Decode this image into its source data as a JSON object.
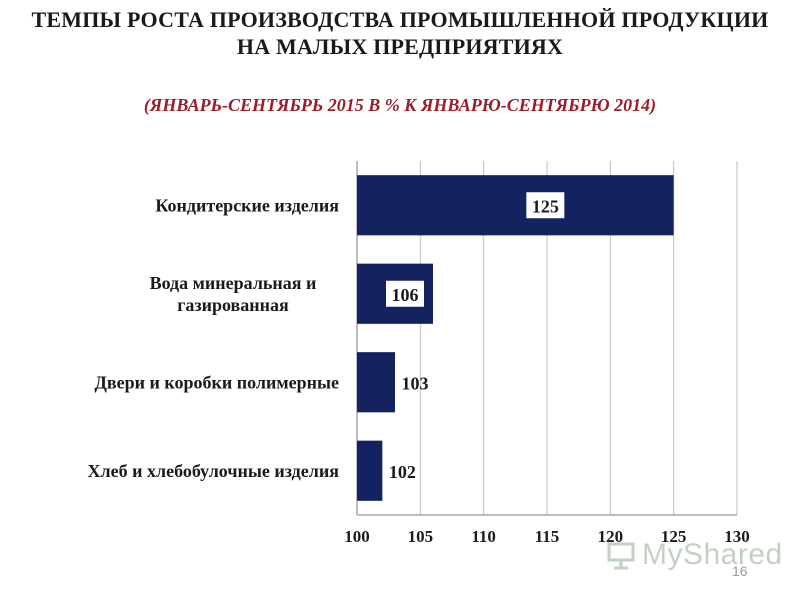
{
  "slide": {
    "title": "ТЕМПЫ РОСТА ПРОИЗВОДСТВА ПРОМЫШЛЕННОЙ ПРОДУКЦИИ НА МАЛЫХ ПРЕДПРИЯТИЯХ",
    "subtitle": "(ЯНВАРЬ-СЕНТЯБРЬ 2015 В % К ЯНВАРЮ-СЕНТЯБРЮ 2014)",
    "page_number": "16",
    "watermark_text": "MyShared",
    "watermark_icon": "presentation-board-icon"
  },
  "colors": {
    "bar": "#14235f",
    "subtitle": "#9b1c2c",
    "grid": "#bfbfbf",
    "axis": "#7f7f7f"
  },
  "chart_data": {
    "type": "bar",
    "orientation": "horizontal",
    "categories": [
      "Кондитерские изделия",
      "Вода минеральная и газированная",
      "Двери и коробки полимерные",
      "Хлеб и хлебобулочные изделия"
    ],
    "category_lines": [
      [
        "Кондитерские изделия"
      ],
      [
        "Вода минеральная и",
        "газированная"
      ],
      [
        "Двери и коробки полимерные"
      ],
      [
        "Хлеб и хлебобулочные изделия"
      ]
    ],
    "values": [
      125,
      106,
      103,
      102
    ],
    "data_labels": [
      "125",
      "106",
      "103",
      "102"
    ],
    "xlim": [
      100,
      130
    ],
    "xticks": [
      100,
      105,
      110,
      115,
      120,
      125,
      130
    ],
    "grid": true,
    "legend": "none",
    "title": "",
    "xlabel": "",
    "ylabel": ""
  }
}
